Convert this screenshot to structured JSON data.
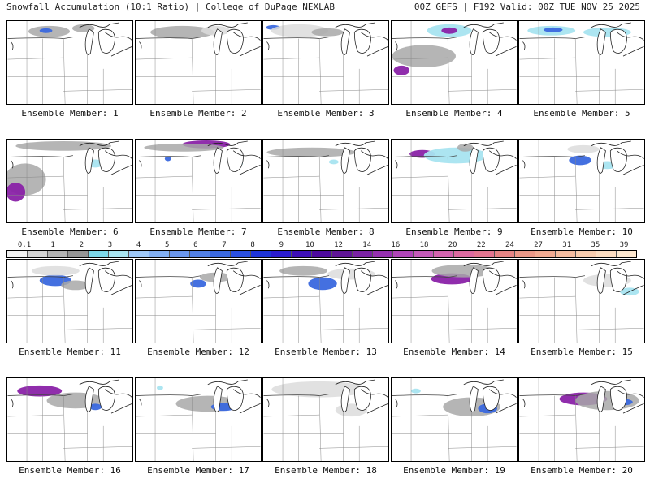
{
  "header": {
    "left": "Snowfall Accumulation (10:1 Ratio) | College of DuPage NEXLAB",
    "right": "00Z GEFS | F192 Valid: 00Z TUE NOV 25 2025"
  },
  "colorbar": {
    "labels": [
      "0.1",
      "1",
      "2",
      "3",
      "4",
      "5",
      "6",
      "7",
      "8",
      "9",
      "10",
      "12",
      "14",
      "16",
      "18",
      "20",
      "22",
      "24",
      "27",
      "31",
      "35",
      "39"
    ],
    "colors": [
      "#f0f0f0",
      "#d2d2d2",
      "#b4b4b4",
      "#969696",
      "#7dd8ea",
      "#a8e4f0",
      "#9ec8f8",
      "#82aff2",
      "#6a96ec",
      "#5180e6",
      "#3a68de",
      "#2a4fe0",
      "#1e34d8",
      "#2a1bd0",
      "#3d0fb8",
      "#4d0a9e",
      "#5f1596",
      "#7a22a4",
      "#9530b0",
      "#b045b8",
      "#c45ab8",
      "#d264ae",
      "#dc6aa0",
      "#e27590",
      "#e48484",
      "#ea9888",
      "#f0aa92",
      "#f4bca0",
      "#f8ccae",
      "#fcdcc0",
      "#fee8d0"
    ]
  },
  "panels": [
    {
      "caption": "Ensemble Member: 1",
      "blobs": [
        {
          "cx": 52,
          "cy": 13,
          "rx": 26,
          "ry": 7,
          "cat": 1
        },
        {
          "cx": 48,
          "cy": 12,
          "rx": 8,
          "ry": 3,
          "cat": 3
        },
        {
          "cx": 95,
          "cy": 9,
          "rx": 14,
          "ry": 5,
          "cat": 1
        }
      ]
    },
    {
      "caption": "Ensemble Member: 2",
      "blobs": [
        {
          "cx": 58,
          "cy": 14,
          "rx": 40,
          "ry": 8,
          "cat": 1
        },
        {
          "cx": 100,
          "cy": 12,
          "rx": 18,
          "ry": 6,
          "cat": 0
        }
      ]
    },
    {
      "caption": "Ensemble Member: 3",
      "blobs": [
        {
          "cx": 12,
          "cy": 8,
          "rx": 9,
          "ry": 3,
          "cat": 3
        },
        {
          "cx": 45,
          "cy": 12,
          "rx": 36,
          "ry": 8,
          "cat": 0
        },
        {
          "cx": 80,
          "cy": 14,
          "rx": 20,
          "ry": 5,
          "cat": 1
        }
      ]
    },
    {
      "caption": "Ensemble Member: 4",
      "blobs": [
        {
          "cx": 40,
          "cy": 44,
          "rx": 40,
          "ry": 14,
          "cat": 1
        },
        {
          "cx": 12,
          "cy": 62,
          "rx": 10,
          "ry": 6,
          "cat": 4
        },
        {
          "cx": 72,
          "cy": 12,
          "rx": 28,
          "ry": 8,
          "cat": 2
        },
        {
          "cx": 72,
          "cy": 12,
          "rx": 10,
          "ry": 4,
          "cat": 4
        }
      ]
    },
    {
      "caption": "Ensemble Member: 5",
      "blobs": [
        {
          "cx": 40,
          "cy": 12,
          "rx": 30,
          "ry": 6,
          "cat": 2
        },
        {
          "cx": 42,
          "cy": 11,
          "rx": 12,
          "ry": 3,
          "cat": 3
        },
        {
          "cx": 110,
          "cy": 14,
          "rx": 30,
          "ry": 6,
          "cat": 2
        }
      ]
    },
    {
      "caption": "Ensemble Member: 6",
      "blobs": [
        {
          "cx": 22,
          "cy": 50,
          "rx": 26,
          "ry": 20,
          "cat": 1
        },
        {
          "cx": 10,
          "cy": 66,
          "rx": 12,
          "ry": 12,
          "cat": 4
        },
        {
          "cx": 70,
          "cy": 8,
          "rx": 60,
          "ry": 6,
          "cat": 1
        },
        {
          "cx": 110,
          "cy": 30,
          "rx": 10,
          "ry": 5,
          "cat": 2
        }
      ]
    },
    {
      "caption": "Ensemble Member: 7",
      "blobs": [
        {
          "cx": 88,
          "cy": 6,
          "rx": 30,
          "ry": 5,
          "cat": 4
        },
        {
          "cx": 60,
          "cy": 10,
          "rx": 50,
          "ry": 5,
          "cat": 1
        },
        {
          "cx": 40,
          "cy": 24,
          "rx": 4,
          "ry": 3,
          "cat": 3
        },
        {
          "cx": 128,
          "cy": 30,
          "rx": 6,
          "ry": 4,
          "cat": 2
        }
      ]
    },
    {
      "caption": "Ensemble Member: 8",
      "blobs": [
        {
          "cx": 60,
          "cy": 16,
          "rx": 56,
          "ry": 6,
          "cat": 1
        },
        {
          "cx": 88,
          "cy": 28,
          "rx": 6,
          "ry": 3,
          "cat": 2
        }
      ]
    },
    {
      "caption": "Ensemble Member: 9",
      "blobs": [
        {
          "cx": 38,
          "cy": 18,
          "rx": 16,
          "ry": 5,
          "cat": 4
        },
        {
          "cx": 80,
          "cy": 20,
          "rx": 40,
          "ry": 10,
          "cat": 2
        },
        {
          "cx": 92,
          "cy": 10,
          "rx": 10,
          "ry": 5,
          "cat": 1
        }
      ]
    },
    {
      "caption": "Ensemble Member: 10",
      "blobs": [
        {
          "cx": 76,
          "cy": 26,
          "rx": 14,
          "ry": 6,
          "cat": 3
        },
        {
          "cx": 110,
          "cy": 32,
          "rx": 12,
          "ry": 5,
          "cat": 2
        },
        {
          "cx": 80,
          "cy": 12,
          "rx": 20,
          "ry": 5,
          "cat": 0
        }
      ]
    },
    {
      "caption": "Ensemble Member: 11",
      "blobs": [
        {
          "cx": 60,
          "cy": 26,
          "rx": 20,
          "ry": 7,
          "cat": 3
        },
        {
          "cx": 85,
          "cy": 32,
          "rx": 18,
          "ry": 6,
          "cat": 1
        },
        {
          "cx": 60,
          "cy": 14,
          "rx": 30,
          "ry": 6,
          "cat": 0
        }
      ]
    },
    {
      "caption": "Ensemble Member: 12",
      "blobs": [
        {
          "cx": 78,
          "cy": 30,
          "rx": 10,
          "ry": 5,
          "cat": 3
        },
        {
          "cx": 100,
          "cy": 22,
          "rx": 20,
          "ry": 6,
          "cat": 1
        }
      ]
    },
    {
      "caption": "Ensemble Member: 13",
      "blobs": [
        {
          "cx": 74,
          "cy": 30,
          "rx": 18,
          "ry": 8,
          "cat": 3
        },
        {
          "cx": 50,
          "cy": 14,
          "rx": 30,
          "ry": 6,
          "cat": 1
        },
        {
          "cx": 110,
          "cy": 18,
          "rx": 30,
          "ry": 7,
          "cat": 0
        }
      ]
    },
    {
      "caption": "Ensemble Member: 14",
      "blobs": [
        {
          "cx": 75,
          "cy": 24,
          "rx": 26,
          "ry": 7,
          "cat": 4
        },
        {
          "cx": 90,
          "cy": 14,
          "rx": 40,
          "ry": 8,
          "cat": 1
        }
      ]
    },
    {
      "caption": "Ensemble Member: 15",
      "blobs": [
        {
          "cx": 110,
          "cy": 26,
          "rx": 30,
          "ry": 8,
          "cat": 0
        },
        {
          "cx": 138,
          "cy": 40,
          "rx": 12,
          "ry": 5,
          "cat": 2
        }
      ]
    },
    {
      "caption": "Ensemble Member: 16",
      "blobs": [
        {
          "cx": 40,
          "cy": 16,
          "rx": 28,
          "ry": 7,
          "cat": 4
        },
        {
          "cx": 85,
          "cy": 28,
          "rx": 36,
          "ry": 10,
          "cat": 1
        },
        {
          "cx": 110,
          "cy": 36,
          "rx": 8,
          "ry": 4,
          "cat": 3
        }
      ]
    },
    {
      "caption": "Ensemble Member: 17",
      "blobs": [
        {
          "cx": 90,
          "cy": 32,
          "rx": 40,
          "ry": 10,
          "cat": 1
        },
        {
          "cx": 110,
          "cy": 36,
          "rx": 16,
          "ry": 5,
          "cat": 3
        },
        {
          "cx": 30,
          "cy": 12,
          "rx": 4,
          "ry": 3,
          "cat": 2
        }
      ]
    },
    {
      "caption": "Ensemble Member: 18",
      "blobs": [
        {
          "cx": 70,
          "cy": 14,
          "rx": 60,
          "ry": 10,
          "cat": 0
        },
        {
          "cx": 110,
          "cy": 40,
          "rx": 20,
          "ry": 8,
          "cat": 0
        }
      ]
    },
    {
      "caption": "Ensemble Member: 19",
      "blobs": [
        {
          "cx": 100,
          "cy": 36,
          "rx": 36,
          "ry": 12,
          "cat": 1
        },
        {
          "cx": 120,
          "cy": 38,
          "rx": 12,
          "ry": 6,
          "cat": 3
        },
        {
          "cx": 30,
          "cy": 16,
          "rx": 6,
          "ry": 3,
          "cat": 2
        }
      ]
    },
    {
      "caption": "Ensemble Member: 20",
      "blobs": [
        {
          "cx": 80,
          "cy": 26,
          "rx": 30,
          "ry": 8,
          "cat": 4
        },
        {
          "cx": 110,
          "cy": 28,
          "rx": 40,
          "ry": 12,
          "cat": 1
        },
        {
          "cx": 130,
          "cy": 30,
          "rx": 12,
          "ry": 4,
          "cat": 3
        }
      ]
    }
  ]
}
